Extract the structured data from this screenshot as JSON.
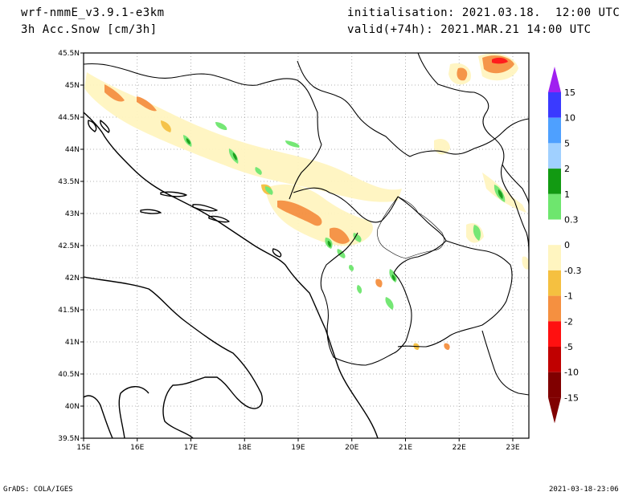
{
  "header": {
    "model": "wrf-nmmE_v3.9.1-e3km",
    "field": "3h Acc.Snow [cm/3h]",
    "init": "initialisation: 2021.03.18.  12:00 UTC",
    "valid": "valid(+74h): 2021.MAR.21 14:00 UTC"
  },
  "axes": {
    "lat_labels": [
      "45.5N",
      "45N",
      "44.5N",
      "44N",
      "43.5N",
      "43N",
      "42.5N",
      "42N",
      "41.5N",
      "41N",
      "40.5N",
      "40N",
      "39.5N"
    ],
    "lon_labels": [
      "15E",
      "16E",
      "17E",
      "18E",
      "19E",
      "20E",
      "21E",
      "22E",
      "23E"
    ],
    "lat_range": [
      39.5,
      45.5
    ],
    "lon_range": [
      15,
      23.3
    ]
  },
  "colorbar": {
    "labels": [
      "15",
      "10",
      "5",
      "2",
      "1",
      "0.3",
      "0",
      "-0.3",
      "-1",
      "-2",
      "-5",
      "-10",
      "-15"
    ],
    "colors": [
      "#a020f0",
      "#3a3aff",
      "#4ea0ff",
      "#a0d0ff",
      "#129a12",
      "#6ee66e",
      "#ffffff",
      "#fff5c0",
      "#f5c040",
      "#f59040",
      "#ff1010",
      "#c00000",
      "#800000"
    ]
  },
  "footer": {
    "left": "GrADS: COLA/IGES",
    "right": "2021-03-18-23:06"
  }
}
